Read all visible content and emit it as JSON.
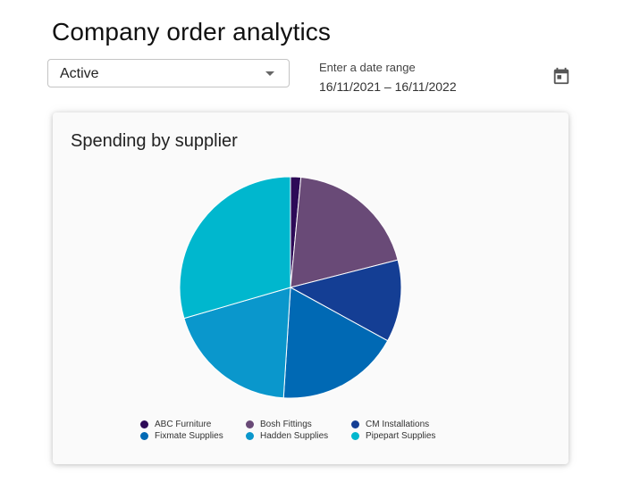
{
  "header": {
    "title": "Company order analytics"
  },
  "filters": {
    "status": {
      "selected": "Active"
    },
    "date_range": {
      "label": "Enter a date range",
      "value": "16/11/2021 – 16/11/2022"
    },
    "calendar_icon": "calendar-icon"
  },
  "card": {
    "title": "Spending by supplier"
  },
  "chart_data": {
    "type": "pie",
    "title": "Spending by supplier",
    "series": [
      {
        "name": "ABC Furniture",
        "value": 1.5,
        "color": "#2d0a57"
      },
      {
        "name": "Bosh Fittings",
        "value": 19.5,
        "color": "#694a77"
      },
      {
        "name": "CM Installations",
        "value": 12,
        "color": "#143e94"
      },
      {
        "name": "Fixmate Supplies",
        "value": 18,
        "color": "#0069b4"
      },
      {
        "name": "Hadden Supplies",
        "value": 19.5,
        "color": "#0a97cc"
      },
      {
        "name": "Pipepart Supplies",
        "value": 29.5,
        "color": "#00b7ce"
      }
    ],
    "legend_position": "bottom"
  }
}
